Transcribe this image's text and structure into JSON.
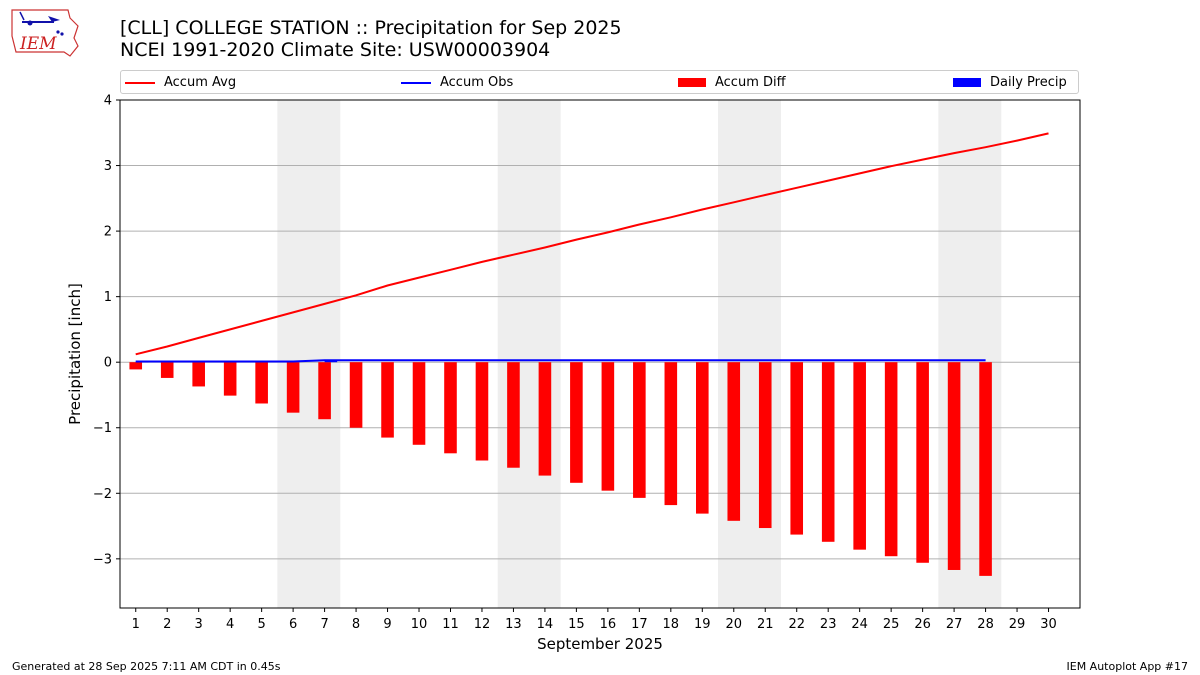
{
  "header": {
    "title_line1": "[CLL] COLLEGE STATION :: Precipitation for Sep 2025",
    "title_line2": "NCEI 1991-2020 Climate Site: USW00003904",
    "logo_text": "IEM"
  },
  "footer": {
    "left": "Generated at 28 Sep 2025 7:11 AM CDT in 0.45s",
    "right": "IEM Autoplot App #17"
  },
  "colors": {
    "avg": "#ff0000",
    "obs": "#0000ff",
    "diff": "#ff0000",
    "daily": "#0000ff",
    "weekend": "#eeeeee",
    "grid": "#b0b0b0"
  },
  "chart_data": {
    "type": "bar",
    "title": "[CLL] COLLEGE STATION :: Precipitation for Sep 2025",
    "xlabel": "September 2025",
    "ylabel": "Precipitation [inch]",
    "xlim": [
      0.5,
      31.0
    ],
    "ylim": [
      -3.75,
      4.0
    ],
    "yticks": [
      -3,
      -2,
      -1,
      0,
      1,
      2,
      3,
      4
    ],
    "xticks": [
      1,
      2,
      3,
      4,
      5,
      6,
      7,
      8,
      9,
      10,
      11,
      12,
      13,
      14,
      15,
      16,
      17,
      18,
      19,
      20,
      21,
      22,
      23,
      24,
      25,
      26,
      27,
      28,
      29,
      30
    ],
    "grid": true,
    "legend": {
      "placement": "top",
      "entries": [
        "Accum Avg",
        "Accum Obs",
        "Accum Diff",
        "Daily Precip"
      ]
    },
    "weekend_spans": [
      [
        5.5,
        7.5
      ],
      [
        12.5,
        14.5
      ],
      [
        19.5,
        21.5
      ],
      [
        26.5,
        28.5
      ]
    ],
    "series": [
      {
        "name": "Accum Avg",
        "kind": "line",
        "x": [
          1,
          2,
          3,
          4,
          5,
          6,
          7,
          8,
          9,
          10,
          11,
          12,
          13,
          14,
          15,
          16,
          17,
          18,
          19,
          20,
          21,
          22,
          23,
          24,
          25,
          26,
          27,
          28,
          29,
          30
        ],
        "values": [
          0.12,
          0.24,
          0.37,
          0.5,
          0.63,
          0.76,
          0.89,
          1.02,
          1.17,
          1.29,
          1.41,
          1.53,
          1.64,
          1.75,
          1.87,
          1.98,
          2.1,
          2.21,
          2.33,
          2.44,
          2.55,
          2.66,
          2.77,
          2.88,
          2.99,
          3.09,
          3.19,
          3.28,
          3.38,
          3.49
        ]
      },
      {
        "name": "Accum Obs",
        "kind": "line",
        "x": [
          1,
          2,
          3,
          4,
          5,
          6,
          7,
          8,
          9,
          10,
          11,
          12,
          13,
          14,
          15,
          16,
          17,
          18,
          19,
          20,
          21,
          22,
          23,
          24,
          25,
          26,
          27,
          28
        ],
        "values": [
          0.01,
          0.01,
          0.01,
          0.01,
          0.01,
          0.01,
          0.03,
          0.03,
          0.03,
          0.03,
          0.03,
          0.03,
          0.03,
          0.03,
          0.03,
          0.03,
          0.03,
          0.03,
          0.03,
          0.03,
          0.03,
          0.03,
          0.03,
          0.03,
          0.03,
          0.03,
          0.03,
          0.03
        ]
      },
      {
        "name": "Accum Diff",
        "kind": "bar",
        "x": [
          1,
          2,
          3,
          4,
          5,
          6,
          7,
          8,
          9,
          10,
          11,
          12,
          13,
          14,
          15,
          16,
          17,
          18,
          19,
          20,
          21,
          22,
          23,
          24,
          25,
          26,
          27,
          28
        ],
        "values": [
          -0.11,
          -0.24,
          -0.37,
          -0.51,
          -0.63,
          -0.77,
          -0.87,
          -1.0,
          -1.15,
          -1.26,
          -1.39,
          -1.5,
          -1.61,
          -1.73,
          -1.84,
          -1.96,
          -2.07,
          -2.18,
          -2.31,
          -2.42,
          -2.53,
          -2.63,
          -2.74,
          -2.86,
          -2.96,
          -3.06,
          -3.17,
          -3.26
        ]
      },
      {
        "name": "Daily Precip",
        "kind": "bar",
        "x": [
          1,
          2,
          3,
          4,
          5,
          6,
          7,
          8,
          9,
          10,
          11,
          12,
          13,
          14,
          15,
          16,
          17,
          18,
          19,
          20,
          21,
          22,
          23,
          24,
          25,
          26,
          27,
          28
        ],
        "values": [
          0.01,
          0,
          0,
          0,
          0,
          0,
          0.02,
          0,
          0,
          0,
          0,
          0,
          0,
          0,
          0,
          0,
          0,
          0,
          0,
          0,
          0,
          0,
          0,
          0,
          0,
          0,
          0,
          0
        ]
      }
    ]
  }
}
